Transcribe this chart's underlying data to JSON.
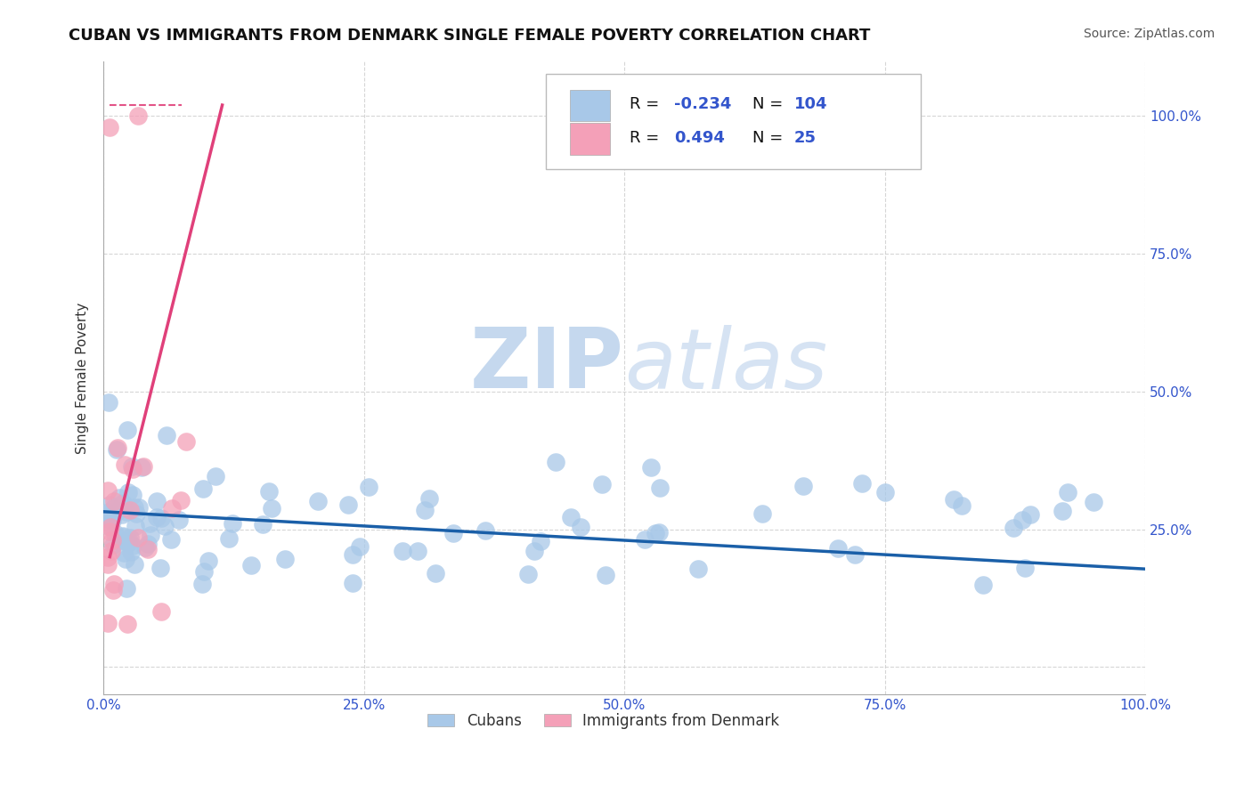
{
  "title": "CUBAN VS IMMIGRANTS FROM DENMARK SINGLE FEMALE POVERTY CORRELATION CHART",
  "source": "Source: ZipAtlas.com",
  "ylabel": "Single Female Poverty",
  "xlim": [
    0,
    1.0
  ],
  "ylim": [
    -0.05,
    1.1
  ],
  "background_color": "#ffffff",
  "blue_color": "#a8c8e8",
  "pink_color": "#f4a0b8",
  "blue_line_color": "#1a5fa8",
  "pink_line_color": "#e0407a",
  "grid_color": "#cccccc",
  "legend_R1": "-0.234",
  "legend_N1": "104",
  "legend_R2": "0.494",
  "legend_N2": "25",
  "legend_color": "#3355cc",
  "watermark_color": "#c5d8ee"
}
